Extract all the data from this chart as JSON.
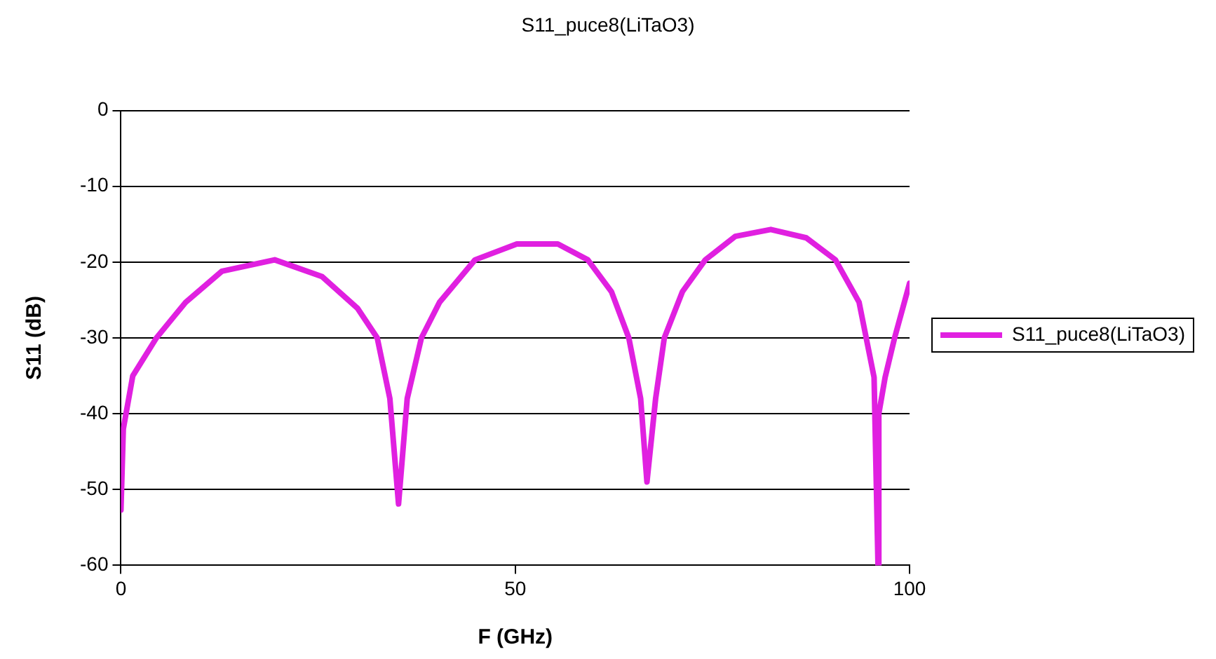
{
  "chart_data": {
    "type": "line",
    "title": "S11_puce8(LiTaO3)",
    "xlabel": "F (GHz)",
    "ylabel": "S11 (dB)",
    "xlim": [
      0,
      100
    ],
    "xticks": [
      0,
      50,
      100
    ],
    "ylim": [
      -60,
      0
    ],
    "yticks": [
      0,
      -10,
      -20,
      -30,
      -40,
      -50,
      -60
    ],
    "grid": "y",
    "legend": "right",
    "marker": "none",
    "line_style": "solid",
    "series": [
      {
        "name": "S11_puce8(LiTaO3)",
        "color": "#e020e0",
        "x": [
          0,
          0.3,
          1.5,
          4.5,
          8.2,
          12.8,
          19.5,
          25.5,
          30,
          32.5,
          34.1,
          35.2,
          36.3,
          38.1,
          40.4,
          44.9,
          50.2,
          55.4,
          59.2,
          62.2,
          64.4,
          65.9,
          66.7,
          67.8,
          68.9,
          71.2,
          74.1,
          77.9,
          82.4,
          86.9,
          90.6,
          93.6,
          95.5,
          96.0,
          96.1,
          96.9,
          98.1,
          100
        ],
        "values": [
          -52.7,
          -42,
          -35,
          -30,
          -25.3,
          -21.2,
          -19.7,
          -21.9,
          -26.1,
          -30,
          -38,
          -51.9,
          -38,
          -30,
          -25.3,
          -19.7,
          -17.6,
          -17.6,
          -19.7,
          -23.9,
          -30,
          -38,
          -49,
          -38,
          -30,
          -23.9,
          -19.7,
          -16.6,
          -15.7,
          -16.8,
          -19.7,
          -25.3,
          -35.2,
          -60,
          -40,
          -35.2,
          -30,
          -22.8
        ]
      }
    ]
  }
}
